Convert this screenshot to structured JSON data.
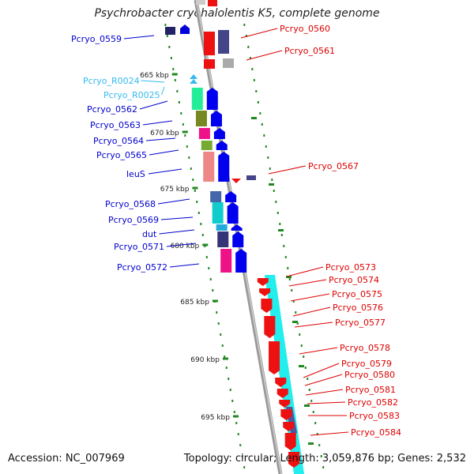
{
  "title": "Psychrobacter cryohalolentis K5, complete genome",
  "footer": {
    "accession": "Accession: NC_007969",
    "summary": "Topology: circular; Length: 3,059,876 bp; Genes: 2,532"
  },
  "colors": {
    "left_label": "#0000cc",
    "right_label": "#dd0000",
    "rna_label": "#33bbee",
    "ruler": "#228822",
    "backbone": "#888888"
  },
  "ruler_ticks": [
    "665 kbp",
    "670 kbp",
    "675 kbp",
    "680 kbp",
    "685 kbp",
    "690 kbp",
    "695 kbp"
  ],
  "left_labels": [
    {
      "text": "Pcryo_0559",
      "type": "gene"
    },
    {
      "text": "Pcryo_R0024",
      "type": "rna"
    },
    {
      "text": "Pcryo_R0025",
      "type": "rna"
    },
    {
      "text": "Pcryo_0562",
      "type": "gene"
    },
    {
      "text": "Pcryo_0563",
      "type": "gene"
    },
    {
      "text": "Pcryo_0564",
      "type": "gene"
    },
    {
      "text": "Pcryo_0565",
      "type": "gene"
    },
    {
      "text": "leuS",
      "type": "gene"
    },
    {
      "text": "Pcryo_0568",
      "type": "gene"
    },
    {
      "text": "Pcryo_0569",
      "type": "gene"
    },
    {
      "text": "dut",
      "type": "gene"
    },
    {
      "text": "Pcryo_0571",
      "type": "gene"
    },
    {
      "text": "Pcryo_0572",
      "type": "gene"
    }
  ],
  "right_labels": [
    "Pcryo_0560",
    "Pcryo_0561",
    "Pcryo_0567",
    "Pcryo_0573",
    "Pcryo_0574",
    "Pcryo_0575",
    "Pcryo_0576",
    "Pcryo_0577",
    "Pcryo_0578",
    "Pcryo_0579",
    "Pcryo_0580",
    "Pcryo_0581",
    "Pcryo_0582",
    "Pcryo_0583",
    "Pcryo_0584"
  ]
}
